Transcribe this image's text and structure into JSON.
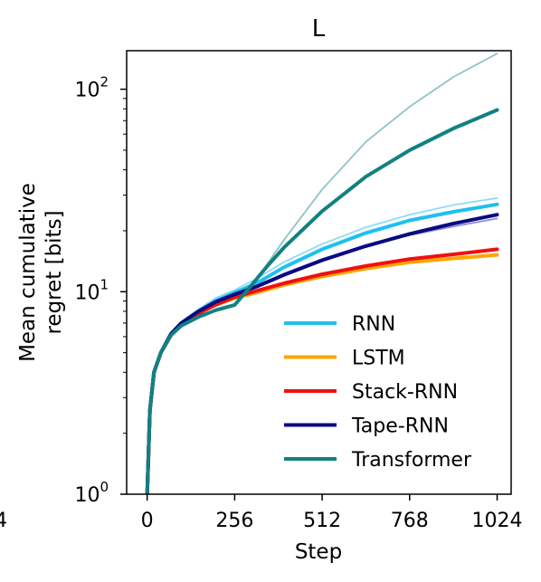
{
  "chart_data": {
    "type": "line",
    "title": "L",
    "xlabel": "Step",
    "ylabel": [
      "Mean cumulative",
      "regret [bits]"
    ],
    "x_ticks": [
      "0",
      "256",
      "512",
      "768",
      "1024"
    ],
    "x_tick_values": [
      0,
      256,
      512,
      768,
      1024
    ],
    "y_scale": "log",
    "y_ticks": [
      {
        "value": 1,
        "base": "10",
        "exp": "0"
      },
      {
        "value": 10,
        "base": "10",
        "exp": "1"
      },
      {
        "value": 100,
        "base": "10",
        "exp": "2"
      }
    ],
    "xlim": [
      -60,
      1065
    ],
    "ylim": [
      1,
      155
    ],
    "clipped_left_tick_label": "4",
    "legend_position": "lower-right",
    "series": [
      {
        "name": "RNN",
        "color": "#1ec0ee",
        "emphasis": "mean",
        "points": [
          [
            0,
            1
          ],
          [
            8,
            2.6
          ],
          [
            20,
            4.0
          ],
          [
            40,
            5.0
          ],
          [
            70,
            6.2
          ],
          [
            100,
            7.0
          ],
          [
            150,
            8.0
          ],
          [
            200,
            9.0
          ],
          [
            256,
            9.9
          ],
          [
            320,
            11.0
          ],
          [
            400,
            13.2
          ],
          [
            512,
            16.2
          ],
          [
            640,
            19.5
          ],
          [
            768,
            22.5
          ],
          [
            896,
            24.8
          ],
          [
            1024,
            27
          ]
        ]
      },
      {
        "name": "RNN",
        "color": "#8edcf4",
        "emphasis": "run",
        "points": [
          [
            0,
            1
          ],
          [
            8,
            2.6
          ],
          [
            20,
            4.0
          ],
          [
            40,
            5.0
          ],
          [
            70,
            6.2
          ],
          [
            100,
            7.1
          ],
          [
            150,
            8.2
          ],
          [
            200,
            9.3
          ],
          [
            256,
            10.2
          ],
          [
            320,
            11.6
          ],
          [
            400,
            14.0
          ],
          [
            512,
            17.2
          ],
          [
            640,
            20.8
          ],
          [
            768,
            24
          ],
          [
            896,
            26.8
          ],
          [
            1024,
            29
          ]
        ]
      },
      {
        "name": "LSTM",
        "color": "#ffa500",
        "emphasis": "mean",
        "points": [
          [
            0,
            1
          ],
          [
            8,
            2.6
          ],
          [
            20,
            4.0
          ],
          [
            40,
            5.0
          ],
          [
            70,
            6.1
          ],
          [
            100,
            6.9
          ],
          [
            150,
            7.8
          ],
          [
            200,
            8.6
          ],
          [
            256,
            9.3
          ],
          [
            320,
            9.9
          ],
          [
            400,
            10.8
          ],
          [
            512,
            11.9
          ],
          [
            640,
            13.0
          ],
          [
            768,
            14.0
          ],
          [
            896,
            14.6
          ],
          [
            1024,
            15.2
          ]
        ]
      },
      {
        "name": "Stack-RNN",
        "color": "#ee1111",
        "emphasis": "mean",
        "points": [
          [
            0,
            1
          ],
          [
            8,
            2.6
          ],
          [
            20,
            4.0
          ],
          [
            40,
            5.0
          ],
          [
            70,
            6.1
          ],
          [
            100,
            6.9
          ],
          [
            150,
            7.8
          ],
          [
            200,
            8.6
          ],
          [
            256,
            9.4
          ],
          [
            320,
            10.1
          ],
          [
            400,
            11.0
          ],
          [
            512,
            12.2
          ],
          [
            640,
            13.4
          ],
          [
            768,
            14.5
          ],
          [
            896,
            15.3
          ],
          [
            1024,
            16.2
          ]
        ]
      },
      {
        "name": "Tape-RNN",
        "color": "#0a0a82",
        "emphasis": "mean",
        "points": [
          [
            0,
            1
          ],
          [
            8,
            2.6
          ],
          [
            20,
            4.0
          ],
          [
            40,
            5.0
          ],
          [
            70,
            6.2
          ],
          [
            100,
            7.0
          ],
          [
            150,
            8.0
          ],
          [
            200,
            8.9
          ],
          [
            256,
            9.7
          ],
          [
            320,
            10.6
          ],
          [
            400,
            12.1
          ],
          [
            512,
            14.3
          ],
          [
            640,
            16.8
          ],
          [
            768,
            19.3
          ],
          [
            896,
            21.7
          ],
          [
            1024,
            24
          ]
        ]
      },
      {
        "name": "Tape-RNN",
        "color": "#8c8ce0",
        "emphasis": "run",
        "points": [
          [
            0,
            1
          ],
          [
            8,
            2.6
          ],
          [
            20,
            4.0
          ],
          [
            40,
            5.0
          ],
          [
            70,
            6.2
          ],
          [
            100,
            7.0
          ],
          [
            150,
            8.0
          ],
          [
            200,
            8.9
          ],
          [
            256,
            9.7
          ],
          [
            320,
            10.7
          ],
          [
            400,
            12.3
          ],
          [
            512,
            14.5
          ],
          [
            640,
            17.0
          ],
          [
            768,
            19.0
          ],
          [
            896,
            21.0
          ],
          [
            1024,
            23
          ]
        ]
      },
      {
        "name": "Transformer",
        "color": "#118181",
        "emphasis": "mean",
        "points": [
          [
            0,
            1
          ],
          [
            8,
            2.6
          ],
          [
            20,
            4.0
          ],
          [
            40,
            5.0
          ],
          [
            70,
            6.1
          ],
          [
            100,
            6.8
          ],
          [
            150,
            7.5
          ],
          [
            200,
            8.1
          ],
          [
            256,
            8.6
          ],
          [
            300,
            10.5
          ],
          [
            350,
            13.3
          ],
          [
            400,
            16.5
          ],
          [
            512,
            25
          ],
          [
            640,
            37
          ],
          [
            768,
            50
          ],
          [
            896,
            64
          ],
          [
            1024,
            79
          ]
        ]
      },
      {
        "name": "Transformer",
        "color": "#8ec4c4",
        "emphasis": "run",
        "points": [
          [
            0,
            1
          ],
          [
            8,
            2.6
          ],
          [
            20,
            4.0
          ],
          [
            40,
            5.0
          ],
          [
            70,
            6.1
          ],
          [
            100,
            6.8
          ],
          [
            150,
            7.5
          ],
          [
            200,
            8.1
          ],
          [
            256,
            8.6
          ],
          [
            300,
            10.3
          ],
          [
            350,
            13.6
          ],
          [
            400,
            18.0
          ],
          [
            512,
            32
          ],
          [
            640,
            55
          ],
          [
            768,
            82
          ],
          [
            896,
            115
          ],
          [
            1024,
            150
          ]
        ]
      }
    ],
    "legend": [
      {
        "label": "RNN",
        "color": "#1ec0ee"
      },
      {
        "label": "LSTM",
        "color": "#ffa500"
      },
      {
        "label": "Stack-RNN",
        "color": "#ee1111"
      },
      {
        "label": "Tape-RNN",
        "color": "#0a0a82"
      },
      {
        "label": "Transformer",
        "color": "#118181"
      }
    ]
  }
}
